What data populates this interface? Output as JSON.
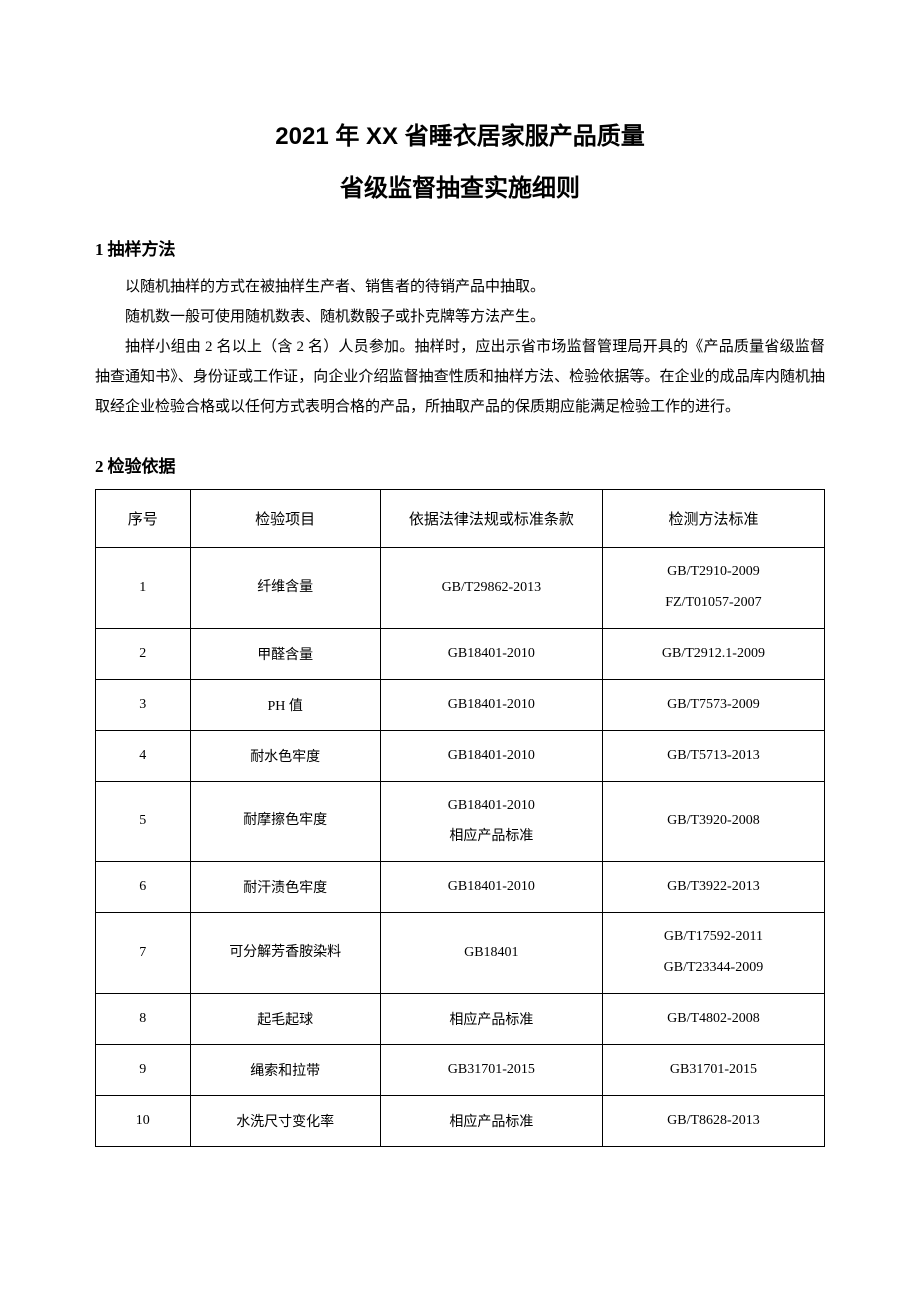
{
  "title_line1": "2021 年 XX 省睡衣居家服产品质量",
  "title_line2": "省级监督抽查实施细则",
  "section1": {
    "num": "1",
    "heading": "抽样方法",
    "p1": "以随机抽样的方式在被抽样生产者、销售者的待销产品中抽取。",
    "p2": "随机数一般可使用随机数表、随机数骰子或扑克牌等方法产生。",
    "p3": "抽样小组由 2 名以上（含 2 名）人员参加。抽样时，应出示省市场监督管理局开具的《产品质量省级监督抽查通知书》、身份证或工作证，向企业介绍监督抽查性质和抽样方法、检验依据等。在企业的成品库内随机抽取经企业检验合格或以任何方式表明合格的产品，所抽取产品的保质期应能满足检验工作的进行。"
  },
  "section2": {
    "num": "2",
    "heading": "检验依据"
  },
  "table": {
    "headers": {
      "seq": "序号",
      "item": "检验项目",
      "basis": "依据法律法规或标准条款",
      "method": "检测方法标准"
    },
    "rows": [
      {
        "seq": "1",
        "item": "纤维含量",
        "basis": [
          "GB/T29862-2013"
        ],
        "method": [
          "GB/T2910-2009",
          "FZ/T01057-2007"
        ]
      },
      {
        "seq": "2",
        "item": "甲醛含量",
        "basis": [
          "GB18401-2010"
        ],
        "method": [
          "GB/T2912.1-2009"
        ]
      },
      {
        "seq": "3",
        "item": "PH 值",
        "basis": [
          "GB18401-2010"
        ],
        "method": [
          "GB/T7573-2009"
        ]
      },
      {
        "seq": "4",
        "item": "耐水色牢度",
        "basis": [
          "GB18401-2010"
        ],
        "method": [
          "GB/T5713-2013"
        ]
      },
      {
        "seq": "5",
        "item": "耐摩擦色牢度",
        "basis": [
          "GB18401-2010",
          "相应产品标准"
        ],
        "method": [
          "GB/T3920-2008"
        ]
      },
      {
        "seq": "6",
        "item": "耐汗渍色牢度",
        "basis": [
          "GB18401-2010"
        ],
        "method": [
          "GB/T3922-2013"
        ]
      },
      {
        "seq": "7",
        "item": "可分解芳香胺染料",
        "basis": [
          "GB18401"
        ],
        "method": [
          "GB/T17592-2011",
          "GB/T23344-2009"
        ]
      },
      {
        "seq": "8",
        "item": "起毛起球",
        "basis": [
          "相应产品标准"
        ],
        "method": [
          "GB/T4802-2008"
        ]
      },
      {
        "seq": "9",
        "item": "绳索和拉带",
        "basis": [
          "GB31701-2015"
        ],
        "method": [
          "GB31701-2015"
        ]
      },
      {
        "seq": "10",
        "item": "水洗尺寸变化率",
        "basis": [
          "相应产品标准"
        ],
        "method": [
          "GB/T8628-2013"
        ]
      }
    ]
  }
}
